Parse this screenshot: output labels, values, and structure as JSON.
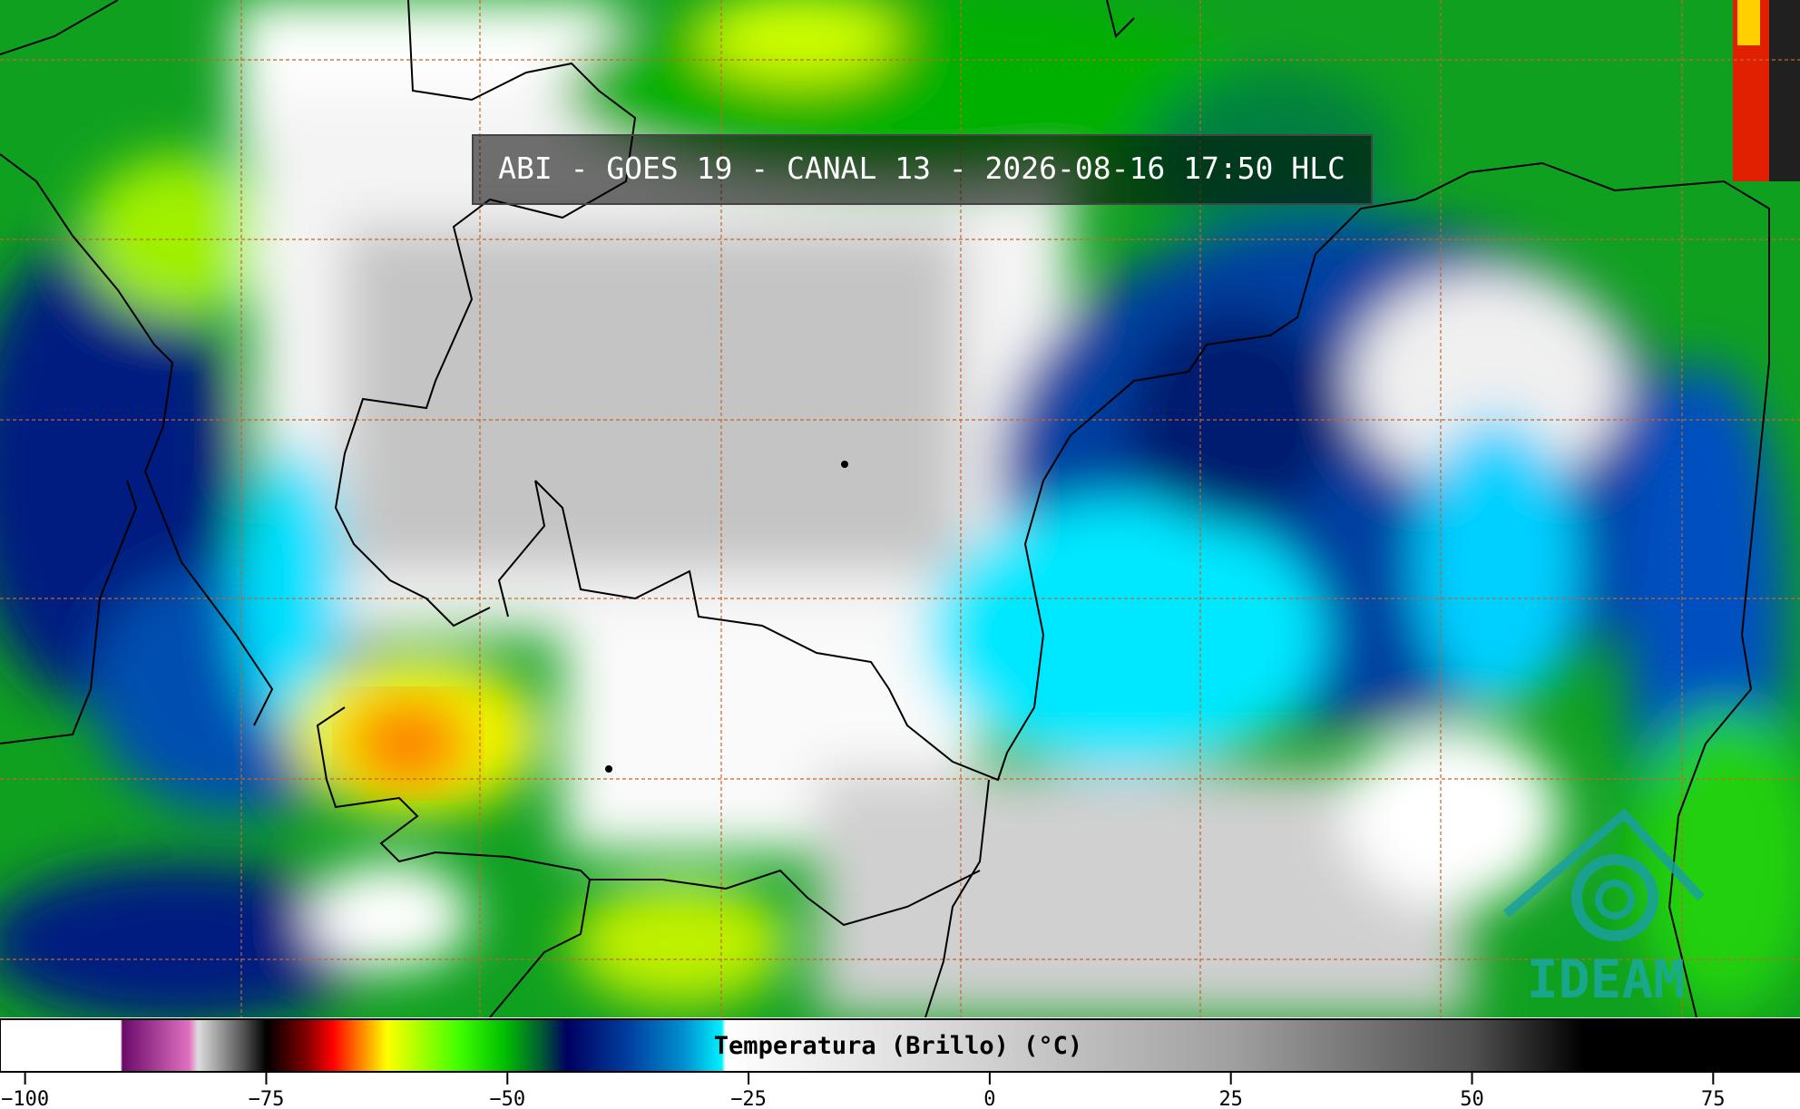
{
  "title": "ABI - GOES 19 - CANAL 13 - 2026-08-16 17:50 HLC",
  "colorbar": {
    "label": "Temperatura (Brillo) (°C)",
    "lim": [
      -102.6,
      84.0
    ],
    "ticks": [
      {
        "value": -100,
        "label": "−100"
      },
      {
        "value": -75,
        "label": "−75"
      },
      {
        "value": -50,
        "label": "−50"
      },
      {
        "value": -25,
        "label": "−25"
      },
      0,
      25,
      50,
      75
    ]
  },
  "logo": "IDEAM"
}
